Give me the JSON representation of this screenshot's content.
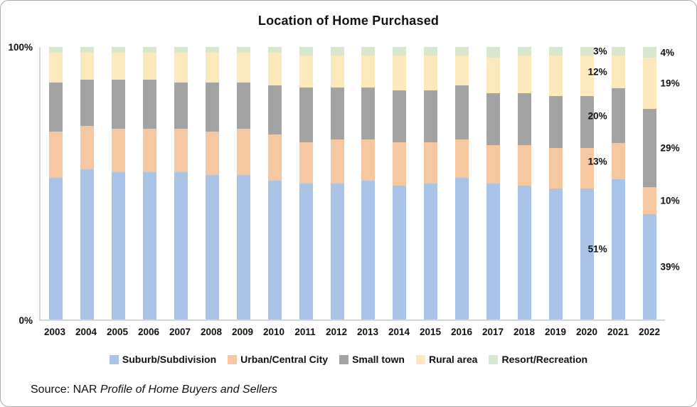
{
  "frame": {
    "title": "Location of Home Purchased"
  },
  "y_axis": {
    "top": "100%",
    "bottom": "0%"
  },
  "source": {
    "prefix": "Source: NAR ",
    "italic_part": "Profile of Home Buyers and Sellers"
  },
  "chart_data": {
    "type": "bar",
    "stacked": true,
    "title": "Location of Home Purchased",
    "categories": [
      "2003",
      "2004",
      "2005",
      "2006",
      "2007",
      "2008",
      "2009",
      "2010",
      "2011",
      "2012",
      "2013",
      "2014",
      "2015",
      "2016",
      "2017",
      "2018",
      "2019",
      "2020",
      "2021",
      "2022"
    ],
    "series": [
      {
        "name": "Suburb/Subdivision",
        "color": "#a9c4e8",
        "values": [
          52,
          55,
          54,
          54,
          54,
          53,
          53,
          51,
          50,
          50,
          51,
          49,
          50,
          52,
          50,
          49,
          48,
          48,
          51,
          39
        ]
      },
      {
        "name": "Urban/Central City",
        "color": "#f5c8a2",
        "values": [
          17,
          16,
          16,
          16,
          16,
          16,
          17,
          17,
          15,
          16,
          15,
          16,
          15,
          14,
          14,
          15,
          15,
          15,
          13,
          10
        ]
      },
      {
        "name": "Small town",
        "color": "#a3a3a3",
        "values": [
          18,
          17,
          18,
          18,
          17,
          18,
          17,
          18,
          20,
          19,
          19,
          19,
          19,
          20,
          19,
          19,
          19,
          19,
          20,
          29
        ]
      },
      {
        "name": "Rural area",
        "color": "#fceabc",
        "values": [
          11,
          10,
          10,
          10,
          11,
          11,
          11,
          12,
          12,
          12,
          12,
          13,
          13,
          11,
          13,
          14,
          15,
          15,
          12,
          19
        ]
      },
      {
        "name": "Resort/Recreation",
        "color": "#d7e7d0",
        "values": [
          2,
          2,
          2,
          2,
          2,
          2,
          2,
          2,
          3,
          3,
          3,
          3,
          3,
          3,
          4,
          3,
          3,
          3,
          3,
          4
        ]
      }
    ],
    "ylim": [
      0,
      100
    ],
    "yticks": [
      "0%",
      "100%"
    ],
    "grid": false,
    "legend_position": "bottom",
    "annotations": [
      {
        "category": "2021",
        "side": "left",
        "labels": [
          "51%",
          "13%",
          "20%",
          "12%",
          "3%"
        ]
      },
      {
        "category": "2022",
        "side": "right",
        "labels": [
          "39%",
          "10%",
          "29%",
          "19%",
          "4%"
        ]
      }
    ]
  }
}
